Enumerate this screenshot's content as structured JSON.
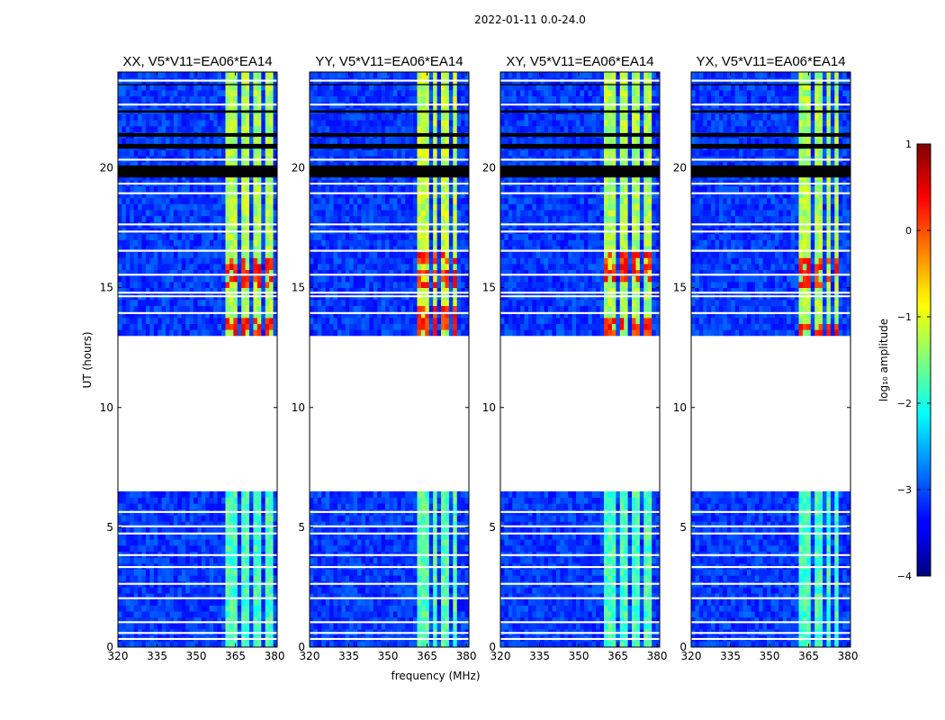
{
  "figure": {
    "suptitle": "2022-01-11 0.0-24.0",
    "xlabel": "frequency (MHz)",
    "ylabel": "UT (hours)"
  },
  "colorbar": {
    "label": "log₁₀ amplitude",
    "range": [
      -4,
      1
    ],
    "ticks": [
      "1",
      "0",
      "−1",
      "−2",
      "−3",
      "−4"
    ],
    "colormap": "jet"
  },
  "chart_data": [
    {
      "type": "heatmap",
      "title": "XX, V5*V11=EA06*EA14",
      "xlabel": "frequency (MHz)",
      "ylabel": "UT (hours)",
      "xlim": [
        320,
        381
      ],
      "ylim": [
        0,
        24
      ],
      "xticks": [
        "320",
        "335",
        "350",
        "365",
        "380"
      ],
      "yticks": [
        "0",
        "5",
        "10",
        "15",
        "20"
      ],
      "band": [
        361,
        380
      ],
      "band_gaps": [
        366.5,
        371.5,
        376
      ],
      "band_level_late": -1.3,
      "band_level_early": -1.8,
      "background_level": -3.1,
      "hot_spots_hours": [
        13.3,
        13.6,
        15.2,
        15.6,
        16.0
      ],
      "hot_level": 0.2
    },
    {
      "type": "heatmap",
      "title": "YY, V5*V11=EA06*EA14",
      "xlabel": "frequency (MHz)",
      "ylabel": "UT (hours)",
      "xlim": [
        320,
        381
      ],
      "ylim": [
        0,
        24
      ],
      "xticks": [
        "320",
        "335",
        "350",
        "365",
        "380"
      ],
      "yticks": [
        "0",
        "5",
        "10",
        "15",
        "20"
      ],
      "band": [
        361,
        377
      ],
      "band_gaps": [
        366,
        370,
        373.5
      ],
      "band_level_late": -1.2,
      "band_level_early": -1.7,
      "background_level": -3.1,
      "hot_spots_hours": [
        13.0,
        13.5,
        14.0,
        15.2,
        15.6,
        16.2
      ],
      "hot_level": 0.2
    },
    {
      "type": "heatmap",
      "title": "XY, V5*V11=EA06*EA14",
      "xlabel": "frequency (MHz)",
      "ylabel": "UT (hours)",
      "xlim": [
        320,
        381
      ],
      "ylim": [
        0,
        24
      ],
      "xticks": [
        "320",
        "335",
        "350",
        "365",
        "380"
      ],
      "yticks": [
        "0",
        "5",
        "10",
        "15",
        "20"
      ],
      "band": [
        360,
        378
      ],
      "band_gaps": [
        365,
        369.5,
        374
      ],
      "band_level_late": -1.3,
      "band_level_early": -1.8,
      "background_level": -3.1,
      "hot_spots_hours": [
        13.3,
        13.6,
        15.4,
        15.8,
        16.2
      ],
      "hot_level": 0.2
    },
    {
      "type": "heatmap",
      "title": "YX, V5*V11=EA06*EA14",
      "xlabel": "frequency (MHz)",
      "ylabel": "UT (hours)",
      "xlim": [
        320,
        381
      ],
      "ylim": [
        0,
        24
      ],
      "xticks": [
        "320",
        "335",
        "350",
        "365",
        "380"
      ],
      "yticks": [
        "0",
        "5",
        "10",
        "15",
        "20"
      ],
      "band": [
        361,
        377
      ],
      "band_gaps": [
        366,
        370.5,
        374
      ],
      "band_level_late": -1.3,
      "band_level_early": -1.8,
      "background_level": -3.1,
      "hot_spots_hours": [
        13.3,
        15.2,
        15.6,
        16.0
      ],
      "hot_level": 0.2
    }
  ],
  "data_gaps_hours": {
    "no_data_range": [
      6.6,
      12.9
    ],
    "flagged_rows": [
      0.3,
      0.55,
      1.0,
      2.0,
      2.6,
      3.3,
      3.8,
      4.7,
      5.0,
      5.6,
      13.9,
      14.6,
      14.75,
      15.5,
      16.5,
      17.3,
      17.6,
      18.9,
      19.3,
      20.3,
      22.6,
      23.6
    ],
    "black_rows": [
      [
        19.6,
        20.1
      ],
      [
        20.8,
        21.0
      ],
      [
        21.3,
        21.45
      ],
      [
        22.3,
        22.4
      ],
      [
        23.45,
        23.5
      ]
    ]
  }
}
